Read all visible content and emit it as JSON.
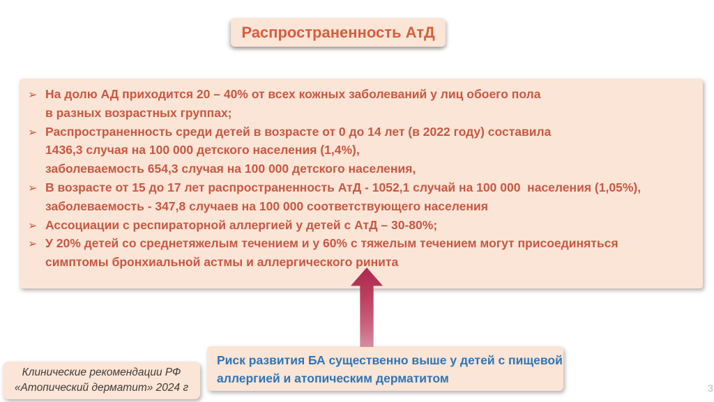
{
  "slide": {
    "title": "Распространенность АтД",
    "page_number": "3"
  },
  "colors": {
    "peach": "#fbe5d6",
    "title": "#d2603f",
    "body": "#c75843",
    "blue": "#2e75b6",
    "dark": "#3f3a39",
    "arrow_dark": "#aa2a4d",
    "arrow_light": "#d48da3"
  },
  "main_box": {
    "bullet_icon": "➢",
    "bullets": [
      {
        "lines": [
          "На долю АД приходится 20 – 40% от всех кожных заболеваний у лиц обоего пола",
          "в разных возрастных группах;"
        ]
      },
      {
        "lines": [
          "Распространенность среди детей в возрасте от 0 до 14 лет (в 2022 году) составила",
          "1436,3 случая на 100 000 детского населения (1,4%),",
          "заболеваемость 654,3 случая на 100 000 детского населения,"
        ]
      },
      {
        "lines": [
          "В возрасте от 15 до 17 лет распространенность АтД - 1052,1 случай на 100 000  населения (1,05%),",
          "заболеваемость - 347,8 случаев на 100 000 соответствующего населения"
        ]
      },
      {
        "lines": [
          "Ассоциации с респираторной аллергией у детей с АтД – 30-80%;"
        ]
      },
      {
        "lines": [
          "У 20% детей со среднетяжелым течением и у 60% с тяжелым течением могут присоединяться",
          "симптомы бронхиальной астмы и аллергического ринита"
        ]
      }
    ]
  },
  "callout_box": {
    "lines": [
      "Риск развития БА существенно выше у детей с пищевой",
      "аллергией и атопическим дерматитом"
    ]
  },
  "source_box": {
    "lines": [
      "Клинические рекомендации РФ",
      "«Атопический дерматит» 2024 г"
    ]
  }
}
